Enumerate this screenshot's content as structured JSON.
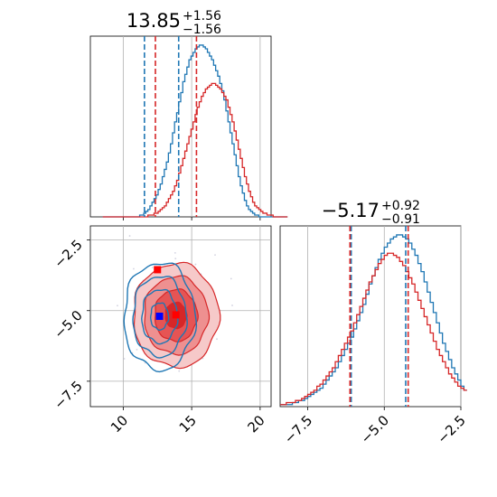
{
  "chart_data": [
    {
      "type": "histogram",
      "panel": "x-marginal",
      "title": {
        "median": "13.85",
        "plus": "+1.56",
        "minus": "−1.56"
      },
      "xlim": [
        7.6,
        20.8
      ],
      "grid": true,
      "colors": {
        "blue": "#1f77b4",
        "red": "#d62728"
      },
      "quantile_lines": {
        "blue": [
          11.55,
          14.05
        ],
        "red": [
          12.35,
          15.35
        ]
      },
      "series": [
        {
          "color": "blue",
          "bin_start": 8.5,
          "bin_width": 0.15,
          "values": [
            0,
            0,
            0,
            0,
            0,
            0,
            0,
            0,
            0,
            0,
            0,
            0,
            0,
            0,
            0,
            0,
            0,
            0,
            1,
            1,
            2,
            3,
            4,
            6,
            8,
            10,
            12,
            15,
            18,
            22,
            26,
            30,
            35,
            40,
            46,
            52,
            57,
            63,
            68,
            74,
            78,
            82,
            86,
            88,
            90,
            92,
            93,
            94,
            94,
            93,
            92,
            90,
            88,
            86,
            83,
            80,
            77,
            73,
            69,
            64,
            58,
            52,
            46,
            40,
            34,
            28,
            22,
            17,
            13,
            9,
            6,
            4,
            3,
            2,
            1,
            1,
            0,
            0,
            0,
            0,
            0,
            0,
            0,
            0,
            0,
            0,
            0,
            0,
            0,
            0
          ]
        },
        {
          "color": "red",
          "bin_start": 8.5,
          "bin_width": 0.15,
          "values": [
            0,
            0,
            0,
            0,
            0,
            0,
            0,
            0,
            0,
            0,
            0,
            0,
            0,
            0,
            0,
            0,
            0,
            0,
            0,
            0,
            0,
            0,
            1,
            1,
            1,
            2,
            2,
            3,
            4,
            5,
            6,
            8,
            10,
            12,
            14,
            17,
            20,
            24,
            28,
            32,
            36,
            40,
            44,
            48,
            52,
            56,
            60,
            63,
            66,
            68,
            70,
            71,
            72,
            73,
            73,
            72,
            71,
            70,
            68,
            66,
            64,
            60,
            56,
            52,
            47,
            42,
            37,
            32,
            27,
            22,
            18,
            14,
            11,
            8,
            6,
            5,
            4,
            3,
            2,
            2,
            1,
            1,
            1,
            0,
            0,
            0,
            0,
            0,
            0,
            0
          ]
        }
      ]
    },
    {
      "type": "contour",
      "panel": "joint",
      "xlim": [
        7.6,
        20.8
      ],
      "ylim": [
        -8.4,
        -2.0
      ],
      "xticks": [
        "10",
        "15",
        "20"
      ],
      "yticks": [
        "−2.5",
        "−5.0",
        "−7.5"
      ],
      "grid": true,
      "truth_markers": [
        {
          "color": "#0000ff",
          "x": 12.65,
          "y": -5.2
        },
        {
          "color": "#ff0000",
          "x": 13.85,
          "y": -5.15
        },
        {
          "color": "#ff0000",
          "x": 12.5,
          "y": -3.55
        }
      ],
      "contours": {
        "red": {
          "center": [
            13.85,
            -5.17
          ],
          "sx": 1.56,
          "sy": 0.92,
          "levels": [
            0.5,
            1.0,
            1.5,
            2.0
          ]
        },
        "blue": {
          "center": [
            12.65,
            -5.2
          ],
          "sx": 1.3,
          "sy": 0.95,
          "levels": [
            0.5,
            1.0,
            1.5,
            2.0
          ]
        }
      }
    },
    {
      "type": "histogram",
      "panel": "y-marginal",
      "title": {
        "median": "−5.17",
        "plus": "+0.92",
        "minus": "−0.91"
      },
      "xlim": [
        -8.4,
        -2.5
      ],
      "xticks": [
        "−7.5",
        "−5.0",
        "−2.5"
      ],
      "grid": true,
      "quantile_lines": {
        "blue": [
          -6.08,
          -4.3
        ],
        "red": [
          -6.12,
          -4.22
        ]
      },
      "series": [
        {
          "color": "blue",
          "bin_start": -8.4,
          "bin_width": 0.1,
          "values": [
            1,
            1,
            1,
            1,
            2,
            2,
            3,
            3,
            4,
            5,
            6,
            7,
            8,
            9,
            11,
            13,
            15,
            17,
            19,
            22,
            25,
            28,
            31,
            34,
            38,
            42,
            46,
            50,
            55,
            60,
            64,
            68,
            72,
            75,
            78,
            80,
            82,
            83,
            84,
            84,
            83,
            82,
            80,
            77,
            74,
            70,
            66,
            61,
            56,
            51,
            46,
            41,
            36,
            31,
            27,
            23,
            19,
            16,
            13,
            10,
            8
          ]
        },
        {
          "color": "red",
          "bin_start": -8.4,
          "bin_width": 0.1,
          "values": [
            1,
            1,
            2,
            2,
            2,
            3,
            3,
            4,
            5,
            6,
            7,
            8,
            10,
            11,
            13,
            15,
            17,
            19,
            22,
            25,
            28,
            31,
            34,
            37,
            41,
            45,
            49,
            53,
            57,
            61,
            64,
            67,
            70,
            72,
            74,
            75,
            75,
            74,
            73,
            71,
            69,
            66,
            63,
            60,
            56,
            52,
            48,
            44,
            40,
            36,
            32,
            28,
            25,
            22,
            19,
            16,
            14,
            12,
            10,
            9,
            8
          ]
        }
      ]
    }
  ]
}
